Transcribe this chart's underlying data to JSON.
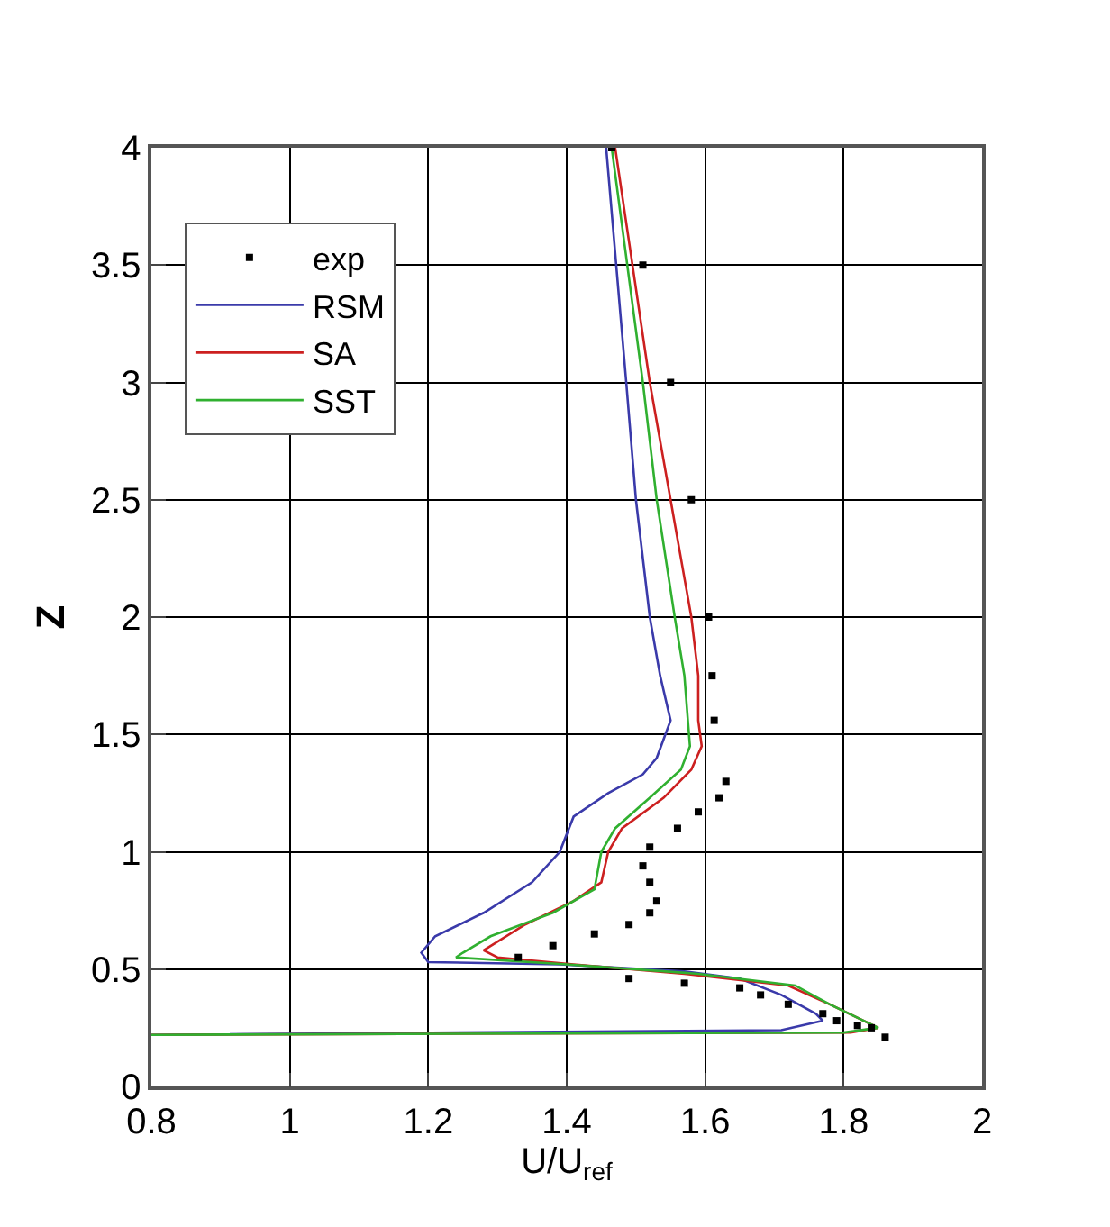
{
  "chart_data": {
    "type": "line",
    "xlabel": "U/U$_{ref}$",
    "ylabel": "Z",
    "xlim": [
      0.8,
      2
    ],
    "ylim": [
      0,
      4
    ],
    "xticks": [
      0.8,
      1,
      1.2,
      1.4,
      1.6,
      1.8,
      2
    ],
    "yticks": [
      0,
      0.5,
      1,
      1.5,
      2,
      2.5,
      3,
      3.5,
      4
    ],
    "grid": true,
    "legend": "top left",
    "line_style": "solid",
    "series": [
      {
        "name": "exp",
        "type": "scatter",
        "marker": "square",
        "color": "#000000",
        "x": [
          1.465,
          1.51,
          1.55,
          1.58,
          1.605,
          1.61,
          1.613,
          1.63,
          1.62,
          1.59,
          1.56,
          1.52,
          1.51,
          1.52,
          1.53,
          1.52,
          1.49,
          1.44,
          1.38,
          1.33,
          1.49,
          1.57,
          1.65,
          1.68,
          1.72,
          1.77,
          1.79,
          1.82,
          1.84,
          1.86
        ],
        "values": [
          4,
          3.5,
          3,
          2.5,
          2,
          1.75,
          1.56,
          1.3,
          1.23,
          1.17,
          1.1,
          1.02,
          0.94,
          0.87,
          0.79,
          0.74,
          0.69,
          0.65,
          0.6,
          0.55,
          0.46,
          0.44,
          0.42,
          0.39,
          0.35,
          0.31,
          0.28,
          0.26,
          0.25,
          0.21
        ]
      },
      {
        "name": "RSM",
        "color": "#3a3aaa",
        "x": [
          1.457,
          1.486,
          1.5,
          1.52,
          1.535,
          1.55,
          1.54,
          1.53,
          1.51,
          1.46,
          1.41,
          1.39,
          1.35,
          1.28,
          1.21,
          1.19,
          1.2,
          1.39,
          1.57,
          1.65,
          1.71,
          1.76,
          1.77,
          1.71,
          0.8
        ],
        "values": [
          4,
          3,
          2.5,
          2,
          1.75,
          1.56,
          1.48,
          1.4,
          1.33,
          1.25,
          1.15,
          1,
          0.87,
          0.74,
          0.64,
          0.57,
          0.53,
          0.52,
          0.49,
          0.46,
          0.39,
          0.31,
          0.28,
          0.24,
          0.22
        ]
      },
      {
        "name": "SA",
        "color": "#cc2020",
        "x": [
          1.47,
          1.52,
          1.55,
          1.58,
          1.59,
          1.59,
          1.595,
          1.58,
          1.54,
          1.48,
          1.46,
          1.45,
          1.41,
          1.34,
          1.28,
          1.3,
          1.41,
          1.57,
          1.72,
          1.78,
          1.85,
          1.81,
          0.8
        ],
        "values": [
          4,
          3,
          2.5,
          2,
          1.75,
          1.56,
          1.45,
          1.35,
          1.23,
          1.1,
          1,
          0.87,
          0.79,
          0.69,
          0.58,
          0.55,
          0.52,
          0.48,
          0.43,
          0.35,
          0.25,
          0.23,
          0.22
        ]
      },
      {
        "name": "SST",
        "color": "#30b030",
        "x": [
          1.465,
          1.51,
          1.53,
          1.556,
          1.57,
          1.575,
          1.578,
          1.565,
          1.52,
          1.47,
          1.45,
          1.44,
          1.38,
          1.29,
          1.25,
          1.24,
          1.4,
          1.59,
          1.73,
          1.78,
          1.85,
          1.8,
          0.8
        ],
        "values": [
          4,
          3,
          2.5,
          2,
          1.75,
          1.56,
          1.45,
          1.35,
          1.23,
          1.1,
          1,
          0.84,
          0.74,
          0.64,
          0.57,
          0.55,
          0.52,
          0.48,
          0.43,
          0.35,
          0.25,
          0.23,
          0.22
        ]
      }
    ]
  }
}
